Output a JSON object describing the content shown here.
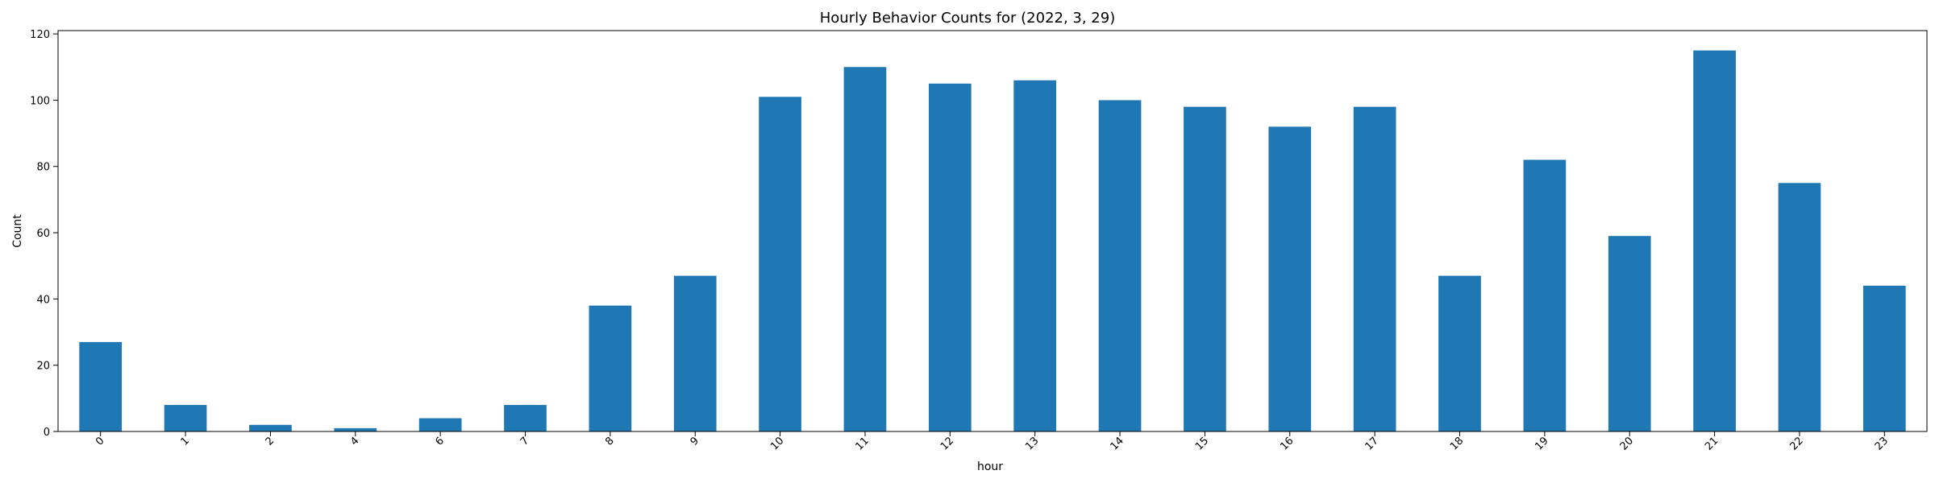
{
  "chart_data": {
    "type": "bar",
    "title": "Hourly Behavior Counts for (2022, 3, 29)",
    "xlabel": "hour",
    "ylabel": "Count",
    "categories": [
      "0",
      "1",
      "2",
      "4",
      "6",
      "7",
      "8",
      "9",
      "10",
      "11",
      "12",
      "13",
      "14",
      "15",
      "16",
      "17",
      "18",
      "19",
      "20",
      "21",
      "22",
      "23"
    ],
    "values": [
      27,
      8,
      2,
      1,
      4,
      8,
      38,
      47,
      101,
      110,
      105,
      106,
      100,
      98,
      92,
      98,
      47,
      82,
      59,
      115,
      75,
      44
    ],
    "ylim": [
      0,
      121
    ],
    "yticks": [
      0,
      20,
      40,
      60,
      80,
      100,
      120
    ],
    "bar_color": "#1f77b4",
    "grid": false,
    "legend": "none"
  }
}
